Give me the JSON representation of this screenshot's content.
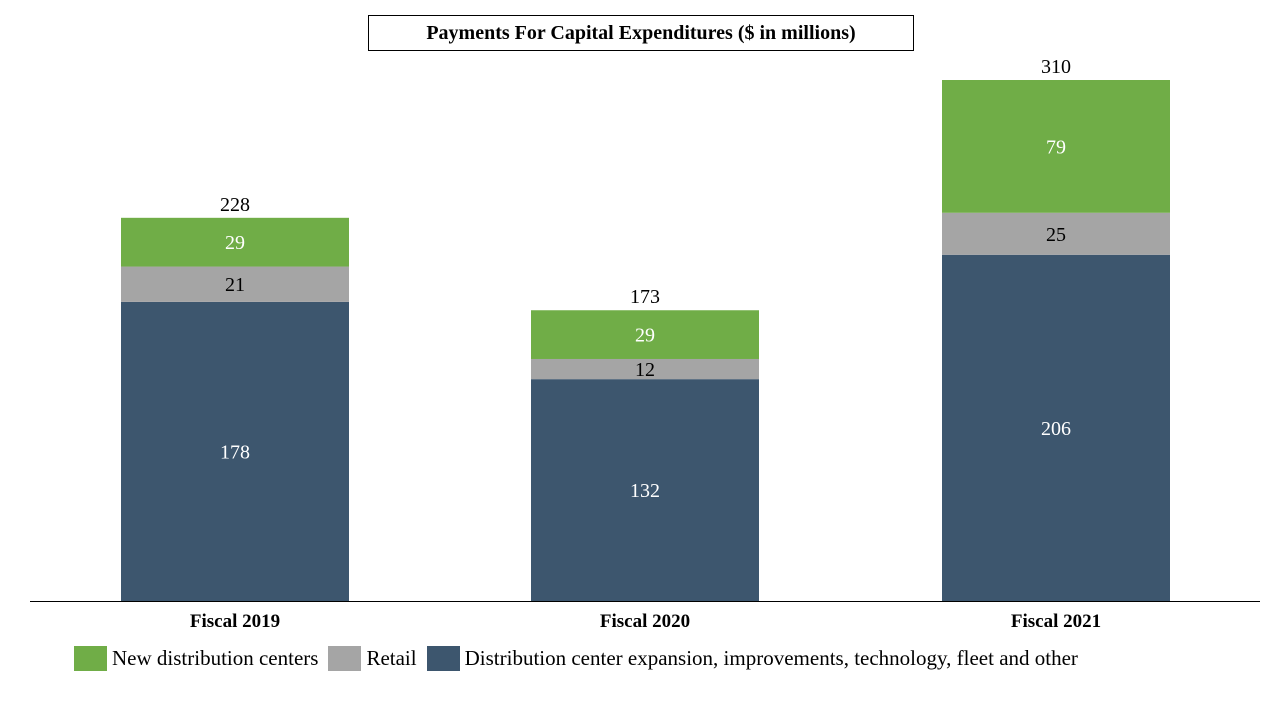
{
  "chart_data": {
    "type": "bar",
    "stacked": true,
    "title": "Payments For Capital Expenditures ($ in millions)",
    "categories": [
      "Fiscal 2019",
      "Fiscal 2020",
      "Fiscal 2021"
    ],
    "series": [
      {
        "name": "Distribution center expansion, improvements, technology, fleet and other",
        "values": [
          178,
          132,
          206
        ],
        "color": "#3D566E",
        "label_color": "#FFFFFF"
      },
      {
        "name": "Retail",
        "values": [
          21,
          12,
          25
        ],
        "color": "#A5A5A5",
        "label_color": "#000000"
      },
      {
        "name": "New distribution centers",
        "values": [
          29,
          29,
          79
        ],
        "color": "#70AD47",
        "label_color": "#FFFFFF"
      }
    ],
    "totals": [
      228,
      173,
      310
    ],
    "ylim": [
      0,
      310
    ],
    "grid": false,
    "legend_position": "bottom",
    "legend_order": [
      "New distribution centers",
      "Retail",
      "Distribution center expansion, improvements, technology, fleet and other"
    ]
  }
}
